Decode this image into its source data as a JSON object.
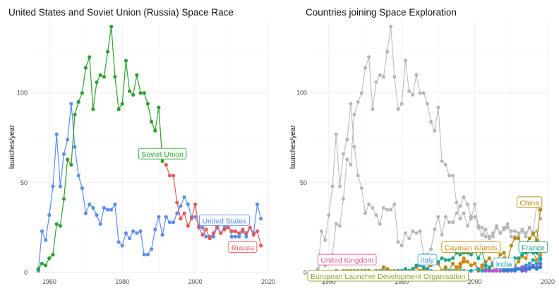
{
  "chart_data": [
    {
      "type": "line",
      "title": "United States and Soviet Union (Russia) Space Race",
      "xlabel": "",
      "ylabel": "launches/year",
      "xlim": [
        1955,
        2020
      ],
      "ylim": [
        0,
        140
      ],
      "x_ticks": [
        1960,
        1980,
        2000,
        2020
      ],
      "y_ticks": [
        0,
        50,
        100
      ],
      "grid": true,
      "series": [
        {
          "name": "United States",
          "color": "#5b8def",
          "label_at": [
            2008,
            29
          ],
          "x": [
            1957,
            1958,
            1959,
            1960,
            1961,
            1962,
            1963,
            1964,
            1965,
            1966,
            1967,
            1968,
            1969,
            1970,
            1971,
            1972,
            1973,
            1974,
            1975,
            1976,
            1977,
            1978,
            1979,
            1980,
            1981,
            1982,
            1983,
            1984,
            1985,
            1986,
            1987,
            1988,
            1989,
            1990,
            1991,
            1992,
            1993,
            1994,
            1995,
            1996,
            1997,
            1998,
            1999,
            2000,
            2001,
            2002,
            2003,
            2004,
            2005,
            2006,
            2007,
            2008,
            2009,
            2010,
            2011,
            2012,
            2013,
            2014,
            2015,
            2016,
            2017,
            2018
          ],
          "y": [
            1,
            23,
            18,
            32,
            48,
            77,
            48,
            66,
            74,
            94,
            70,
            54,
            47,
            33,
            38,
            36,
            32,
            27,
            36,
            35,
            35,
            38,
            17,
            15,
            22,
            19,
            23,
            22,
            23,
            10,
            10,
            13,
            24,
            31,
            21,
            31,
            28,
            28,
            33,
            37,
            42,
            38,
            31,
            31,
            26,
            25,
            20,
            20,
            20,
            25,
            22,
            25,
            27,
            20,
            20,
            20,
            23,
            20,
            25,
            22,
            38,
            30
          ]
        },
        {
          "name": "Soviet Union",
          "color": "#2ca02c",
          "label_at": [
            1991,
            66
          ],
          "x": [
            1957,
            1958,
            1959,
            1960,
            1961,
            1962,
            1963,
            1964,
            1965,
            1966,
            1967,
            1968,
            1969,
            1970,
            1971,
            1972,
            1973,
            1974,
            1975,
            1976,
            1977,
            1978,
            1979,
            1980,
            1981,
            1982,
            1983,
            1984,
            1985,
            1986,
            1987,
            1988,
            1989,
            1990,
            1991
          ],
          "y": [
            2,
            5,
            4,
            8,
            10,
            27,
            26,
            41,
            63,
            60,
            88,
            95,
            100,
            114,
            120,
            91,
            106,
            110,
            109,
            123,
            137,
            109,
            91,
            94,
            118,
            101,
            99,
            110,
            100,
            100,
            94,
            84,
            79,
            92,
            62
          ]
        },
        {
          "name": "Russia",
          "color": "#e8575a",
          "label_at": [
            2013,
            14
          ],
          "x": [
            1992,
            1993,
            1994,
            1995,
            1996,
            1997,
            1998,
            1999,
            2000,
            2001,
            2002,
            2003,
            2004,
            2005,
            2006,
            2007,
            2008,
            2009,
            2010,
            2011,
            2012,
            2013,
            2014,
            2015,
            2016,
            2017,
            2018
          ],
          "y": [
            60,
            54,
            54,
            39,
            30,
            33,
            26,
            30,
            38,
            25,
            21,
            24,
            19,
            22,
            26,
            22,
            24,
            25,
            23,
            23,
            22,
            24,
            22,
            25,
            21,
            23,
            15
          ]
        }
      ]
    },
    {
      "type": "line",
      "title": "Countries joining Space Exploration",
      "xlabel": "",
      "ylabel": "launches/year",
      "xlim": [
        1955,
        2020
      ],
      "ylim": [
        0,
        140
      ],
      "x_ticks": [
        1960,
        1980,
        2000,
        2020
      ],
      "y_ticks": [
        0,
        50,
        100
      ],
      "grid": true,
      "background_color": "#b5b5b5",
      "background_series": [
        {
          "x": [
            1957,
            1958,
            1959,
            1960,
            1961,
            1962,
            1963,
            1964,
            1965,
            1966,
            1967,
            1968,
            1969,
            1970,
            1971,
            1972,
            1973,
            1974,
            1975,
            1976,
            1977,
            1978,
            1979,
            1980,
            1981,
            1982,
            1983,
            1984,
            1985,
            1986,
            1987,
            1988,
            1989,
            1990,
            1991,
            1992,
            1993,
            1994,
            1995,
            1996,
            1997,
            1998,
            1999,
            2000,
            2001,
            2002,
            2003,
            2004,
            2005,
            2006,
            2007,
            2008,
            2009,
            2010,
            2011,
            2012,
            2013,
            2014,
            2015,
            2016,
            2017,
            2018
          ],
          "y": [
            1,
            23,
            18,
            32,
            48,
            77,
            48,
            66,
            74,
            94,
            70,
            54,
            47,
            33,
            38,
            36,
            32,
            27,
            36,
            35,
            35,
            38,
            17,
            15,
            22,
            19,
            23,
            22,
            23,
            10,
            10,
            13,
            24,
            31,
            21,
            31,
            28,
            28,
            33,
            37,
            42,
            38,
            31,
            31,
            26,
            25,
            20,
            20,
            20,
            25,
            22,
            25,
            27,
            20,
            20,
            20,
            23,
            20,
            25,
            22,
            38,
            30
          ]
        },
        {
          "x": [
            1957,
            1958,
            1959,
            1960,
            1961,
            1962,
            1963,
            1964,
            1965,
            1966,
            1967,
            1968,
            1969,
            1970,
            1971,
            1972,
            1973,
            1974,
            1975,
            1976,
            1977,
            1978,
            1979,
            1980,
            1981,
            1982,
            1983,
            1984,
            1985,
            1986,
            1987,
            1988,
            1989,
            1990,
            1991,
            1992,
            1993,
            1994,
            1995,
            1996,
            1997,
            1998,
            1999,
            2000,
            2001,
            2002,
            2003,
            2004,
            2005,
            2006,
            2007,
            2008,
            2009,
            2010,
            2011,
            2012,
            2013,
            2014,
            2015,
            2016,
            2017,
            2018
          ],
          "y": [
            2,
            5,
            4,
            8,
            10,
            27,
            26,
            41,
            63,
            60,
            88,
            95,
            100,
            114,
            120,
            91,
            106,
            110,
            109,
            123,
            137,
            109,
            91,
            94,
            118,
            101,
            99,
            110,
            100,
            100,
            94,
            84,
            79,
            92,
            62,
            60,
            54,
            54,
            39,
            30,
            33,
            26,
            30,
            38,
            25,
            21,
            24,
            19,
            22,
            26,
            22,
            24,
            25,
            23,
            23,
            22,
            24,
            22,
            25,
            21,
            23,
            15
          ]
        }
      ],
      "series": [
        {
          "name": "China",
          "color": "#b8860b",
          "label_at": [
            2015,
            39
          ],
          "x": [
            1970,
            1971,
            1973,
            1974,
            1975,
            1976,
            1978,
            1979,
            1981,
            1982,
            1983,
            1984,
            1985,
            1986,
            1987,
            1988,
            1990,
            1991,
            1992,
            1993,
            1994,
            1995,
            1996,
            1997,
            1998,
            1999,
            2000,
            2001,
            2002,
            2003,
            2004,
            2005,
            2006,
            2007,
            2008,
            2009,
            2010,
            2011,
            2012,
            2013,
            2014,
            2015,
            2016,
            2017,
            2018
          ],
          "y": [
            1,
            1,
            1,
            1,
            3,
            2,
            1,
            1,
            1,
            1,
            1,
            3,
            1,
            2,
            2,
            4,
            5,
            1,
            3,
            1,
            5,
            2,
            3,
            6,
            6,
            4,
            5,
            1,
            4,
            6,
            8,
            5,
            6,
            10,
            11,
            6,
            15,
            19,
            19,
            15,
            16,
            19,
            22,
            18,
            35
          ]
        },
        {
          "name": "Cayman Islands",
          "color": "#d4890e",
          "label_at": [
            1999,
            14
          ],
          "x": [
            1995,
            1996,
            1997,
            1998,
            1999,
            2000,
            2001,
            2002,
            2003,
            2004,
            2005,
            2006,
            2007,
            2008,
            2009,
            2010,
            2011,
            2012,
            2013,
            2014,
            2015,
            2016,
            2017,
            2018
          ],
          "y": [
            3,
            5,
            8,
            6,
            4,
            5,
            2,
            3,
            1,
            2,
            4,
            5,
            6,
            8,
            4,
            3,
            4,
            6,
            9,
            8,
            12,
            11,
            7,
            10
          ]
        },
        {
          "name": "France",
          "color": "#1aa68c",
          "label_at": [
            2016,
            14
          ],
          "x": [
            1979,
            1980,
            1981,
            1982,
            1983,
            1984,
            1985,
            1986,
            1987,
            1988,
            1989,
            1990,
            1991,
            1992,
            1993,
            1994,
            1995,
            1996,
            1997,
            1998,
            1999,
            2000,
            2001,
            2002,
            2003,
            2004,
            2005,
            2006,
            2007,
            2008,
            2009,
            2010,
            2011,
            2012,
            2013,
            2014,
            2015,
            2016,
            2017,
            2018
          ],
          "y": [
            1,
            1,
            2,
            1,
            2,
            4,
            4,
            3,
            2,
            7,
            7,
            6,
            8,
            7,
            7,
            8,
            11,
            10,
            11,
            11,
            10,
            12,
            8,
            12,
            4,
            3,
            5,
            5,
            6,
            6,
            7,
            6,
            8,
            8,
            10,
            11,
            12,
            11,
            11,
            8
          ]
        },
        {
          "name": "India",
          "color": "#17a5c9",
          "label_at": [
            2008,
            5
          ],
          "x": [
            1979,
            1980,
            1983,
            1987,
            1988,
            1992,
            1993,
            1994,
            1996,
            1997,
            1999,
            2001,
            2002,
            2003,
            2004,
            2005,
            2007,
            2008,
            2009,
            2010,
            2011,
            2012,
            2013,
            2014,
            2015,
            2016,
            2017,
            2018
          ],
          "y": [
            1,
            1,
            1,
            1,
            1,
            1,
            1,
            1,
            1,
            1,
            1,
            2,
            1,
            2,
            1,
            1,
            3,
            3,
            2,
            3,
            3,
            2,
            3,
            4,
            5,
            7,
            5,
            7
          ]
        },
        {
          "name": "italy",
          "color": "#4ea3e3",
          "label_at": [
            1987,
            7
          ],
          "x": [
            1967,
            1970,
            1971,
            1974,
            1975,
            1988
          ],
          "y": [
            1,
            1,
            1,
            1,
            1,
            1
          ]
        },
        {
          "name": "United Kingdom",
          "color": "#e05a9a",
          "label_at": [
            1965,
            7
          ],
          "x": [
            1962,
            1964,
            1967,
            1971
          ],
          "y": [
            1,
            1,
            1,
            1
          ]
        },
        {
          "name": "European Launcher Development Organisation",
          "color": "#8ea32a",
          "label_at": [
            1975,
            -2
          ],
          "x": [
            1964,
            1965,
            1966,
            1967,
            1968,
            1969,
            1970,
            1971
          ],
          "y": [
            1,
            1,
            1,
            1,
            1,
            1,
            1,
            1
          ]
        },
        {
          "name": "",
          "color": "#7b62d9",
          "x": [
            2004,
            2005,
            2006,
            2007,
            2008,
            2009,
            2010,
            2011,
            2012,
            2013,
            2014,
            2015,
            2016,
            2017,
            2018
          ],
          "y": [
            1,
            1,
            1,
            1,
            2,
            2,
            1,
            2,
            2,
            3,
            3,
            3,
            4,
            3,
            5
          ]
        },
        {
          "name": "",
          "color": "#c44fd6",
          "x": [
            2003,
            2005,
            2006,
            2007,
            2008,
            2009,
            2010,
            2011,
            2012,
            2013,
            2014,
            2015,
            2016,
            2017,
            2018
          ],
          "y": [
            1,
            1,
            1,
            1,
            1,
            2,
            2,
            1,
            2,
            2,
            1,
            2,
            3,
            2,
            3
          ]
        },
        {
          "name": "",
          "color": "#2a7ed4",
          "x": [
            2008,
            2009,
            2010,
            2011,
            2012,
            2013,
            2014,
            2015,
            2016,
            2017,
            2018
          ],
          "y": [
            1,
            1,
            2,
            1,
            2,
            1,
            2,
            2,
            3,
            2,
            3
          ]
        }
      ]
    }
  ]
}
